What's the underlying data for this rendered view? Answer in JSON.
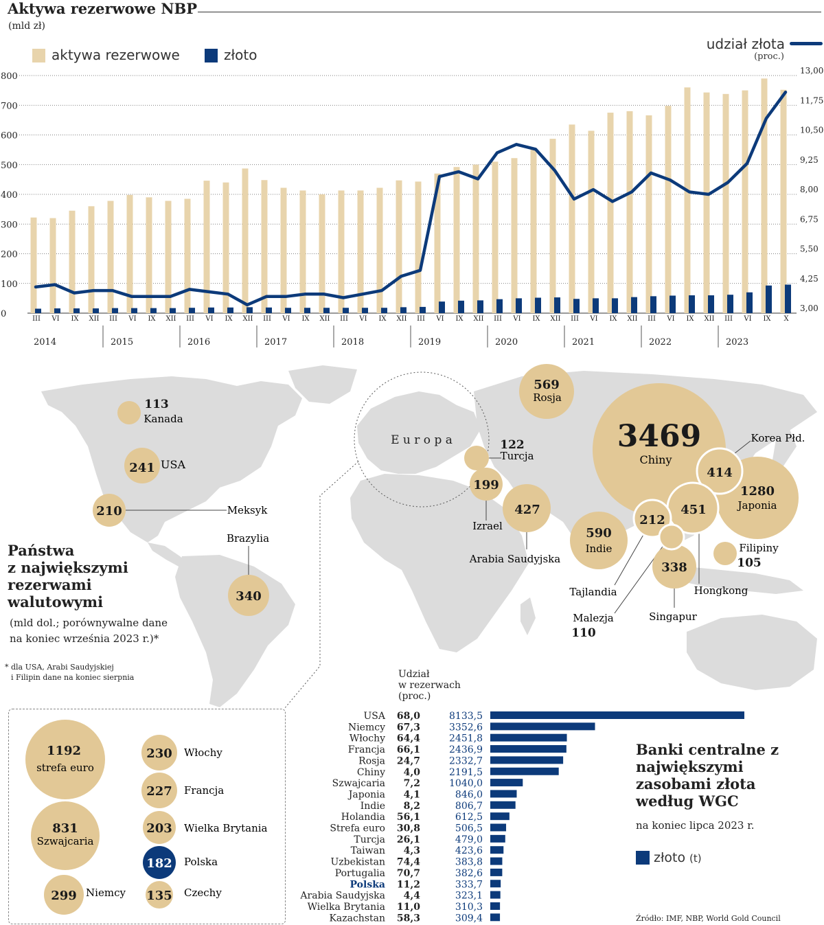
{
  "colors": {
    "beige": "#e8d4ac",
    "bubble": "#e2c896",
    "navy": "#0c3a7a",
    "map": "#dcdcdc",
    "text": "#222222"
  },
  "chart_data": [
    {
      "type": "bar+line",
      "title": "Aktywa rezerwowe NBP",
      "unit": "(mld zł)",
      "legend": {
        "reserves": "aktywa rezerwowe",
        "gold": "złoto",
        "share": "udział złota",
        "share_unit": "(proc.)"
      },
      "y_left": {
        "min": 0,
        "max": 800,
        "ticks": [
          "0",
          "100",
          "200",
          "300",
          "400",
          "500",
          "600",
          "700",
          "800"
        ]
      },
      "y_right": {
        "min": 3.0,
        "max": 13.0,
        "ticks": [
          "3,00",
          "4,25",
          "5,50",
          "6,75",
          "8,00",
          "9,25",
          "10,50",
          "11,75",
          "13,00"
        ]
      },
      "x_labels": [
        "III",
        "VI",
        "IX",
        "XII",
        "III",
        "VI",
        "IX",
        "XII",
        "III",
        "VI",
        "IX",
        "XII",
        "III",
        "VI",
        "IX",
        "XII",
        "III",
        "VI",
        "IX",
        "XII",
        "III",
        "VI",
        "IX",
        "XII",
        "III",
        "VI",
        "IX",
        "XII",
        "III",
        "VI",
        "IX",
        "XII",
        "III",
        "VI",
        "IX",
        "XII",
        "III",
        "VI",
        "IX",
        "X"
      ],
      "years": [
        "2014",
        "2015",
        "2016",
        "2017",
        "2018",
        "2019",
        "2020",
        "2021",
        "2022",
        "2023"
      ],
      "reserves": [
        322,
        320,
        345,
        360,
        378,
        398,
        390,
        378,
        385,
        446,
        440,
        487,
        448,
        422,
        413,
        400,
        413,
        413,
        422,
        447,
        443,
        470,
        492,
        500,
        510,
        522,
        555,
        587,
        635,
        614,
        675,
        680,
        666,
        698,
        760,
        743,
        738,
        750,
        790,
        752
      ],
      "gold": [
        15,
        16,
        16,
        16,
        17,
        17,
        17,
        17,
        18,
        19,
        19,
        20,
        19,
        18,
        18,
        18,
        18,
        18,
        18,
        20,
        21,
        39,
        42,
        43,
        47,
        50,
        52,
        53,
        48,
        50,
        50,
        54,
        57,
        59,
        60,
        60,
        62,
        70,
        93,
        96
      ],
      "gold_share": [
        4.1,
        4.2,
        3.85,
        3.95,
        3.95,
        3.7,
        3.7,
        3.7,
        4.0,
        3.9,
        3.8,
        3.35,
        3.7,
        3.7,
        3.8,
        3.8,
        3.65,
        3.8,
        3.95,
        4.55,
        4.8,
        8.75,
        8.95,
        8.65,
        9.75,
        10.1,
        9.9,
        9.0,
        7.8,
        8.2,
        7.7,
        8.1,
        8.9,
        8.6,
        8.1,
        8.0,
        8.5,
        9.3,
        11.2,
        12.3
      ]
    },
    {
      "type": "bar",
      "title": "Banki centralne z największymi zasobami złota według WGC",
      "subtitle": "na koniec lipca 2023 r.",
      "legend": "złoto",
      "legend_unit": "(t)",
      "share_header": [
        "Udział",
        "w rezerwach",
        "(proc.)"
      ],
      "categories": [
        "USA",
        "Niemcy",
        "Włochy",
        "Francja",
        "Rosja",
        "Chiny",
        "Szwajcaria",
        "Japonia",
        "Indie",
        "Holandia",
        "Strefa euro",
        "Turcja",
        "Taiwan",
        "Uzbekistan",
        "Portugalia",
        "Polska",
        "Arabia Saudyjska",
        "Wielka Brytania",
        "Kazachstan"
      ],
      "shares": [
        "68,0",
        "67,3",
        "64,4",
        "66,1",
        "24,7",
        "4,0",
        "7,2",
        "4,1",
        "8,2",
        "56,1",
        "30,8",
        "26,1",
        "4,3",
        "74,4",
        "70,7",
        "11,2",
        "4,4",
        "11,0",
        "58,3"
      ],
      "value_labels": [
        "8133,5",
        "3352,6",
        "2451,8",
        "2436,9",
        "2332,7",
        "2191,5",
        "1040,0",
        "846,0",
        "806,7",
        "612,5",
        "506,5",
        "479,0",
        "423,6",
        "383,8",
        "382,6",
        "333,7",
        "323,1",
        "310,3",
        "309,4"
      ],
      "values": [
        8133.5,
        3352.6,
        2451.8,
        2436.9,
        2332.7,
        2191.5,
        1040.0,
        846.0,
        806.7,
        612.5,
        506.5,
        479.0,
        423.6,
        383.8,
        382.6,
        333.7,
        323.1,
        310.3,
        309.4
      ],
      "highlight": "Polska"
    }
  ],
  "map": {
    "title_lines": [
      "Państwa",
      "z największymi",
      "rezerwami",
      "walutowymi"
    ],
    "subtitle_lines": [
      "(mld dol.; porównywalne dane",
      "na koniec września 2023 r.)*"
    ],
    "footnote_lines": [
      "* dla USA, Arabi Saudyjskiej",
      "i Filipin dane na koniec sierpnia"
    ],
    "europa": "E u r o p a",
    "countries": {
      "kanada": {
        "name": "Kanada",
        "value": "113"
      },
      "usa": {
        "name": "USA",
        "value": "241"
      },
      "meksyk": {
        "name": "Meksyk",
        "value": "210"
      },
      "brazylia": {
        "name": "Brazylia",
        "value": "340"
      },
      "rosja": {
        "name": "Rosja",
        "value": "569"
      },
      "chiny": {
        "name": "Chiny",
        "value": "3469"
      },
      "turcja": {
        "name": "Turcja",
        "value": "122"
      },
      "izrael": {
        "name": "Izrael",
        "value": "199"
      },
      "arabia": {
        "name": "Arabia Saudyjska",
        "value": "427"
      },
      "indie": {
        "name": "Indie",
        "value": "590"
      },
      "korea": {
        "name": "Korea Płd.",
        "value": "414"
      },
      "japonia": {
        "name": "Japonia",
        "value": "1280"
      },
      "tajlandia": {
        "name": "Tajlandia",
        "value": "212"
      },
      "hongkong": {
        "name": "Hongkong",
        "value": "451"
      },
      "malezja": {
        "name": "Malezja",
        "value": "110"
      },
      "singapur": {
        "name": "Singapur",
        "value": "338"
      },
      "filipiny": {
        "name": "Filipiny",
        "value": "105"
      }
    },
    "europe_box": [
      {
        "name": "strefa euro",
        "value": "1192"
      },
      {
        "name": "Szwajcaria",
        "value": "831"
      },
      {
        "name": "Niemcy",
        "value": "299"
      },
      {
        "name": "Włochy",
        "value": "230"
      },
      {
        "name": "Francja",
        "value": "227"
      },
      {
        "name": "Wielka Brytania",
        "value": "203"
      },
      {
        "name": "Polska",
        "value": "182"
      },
      {
        "name": "Czechy",
        "value": "135"
      }
    ]
  },
  "source": "Źródło: IMF, NBP, World Gold Council"
}
